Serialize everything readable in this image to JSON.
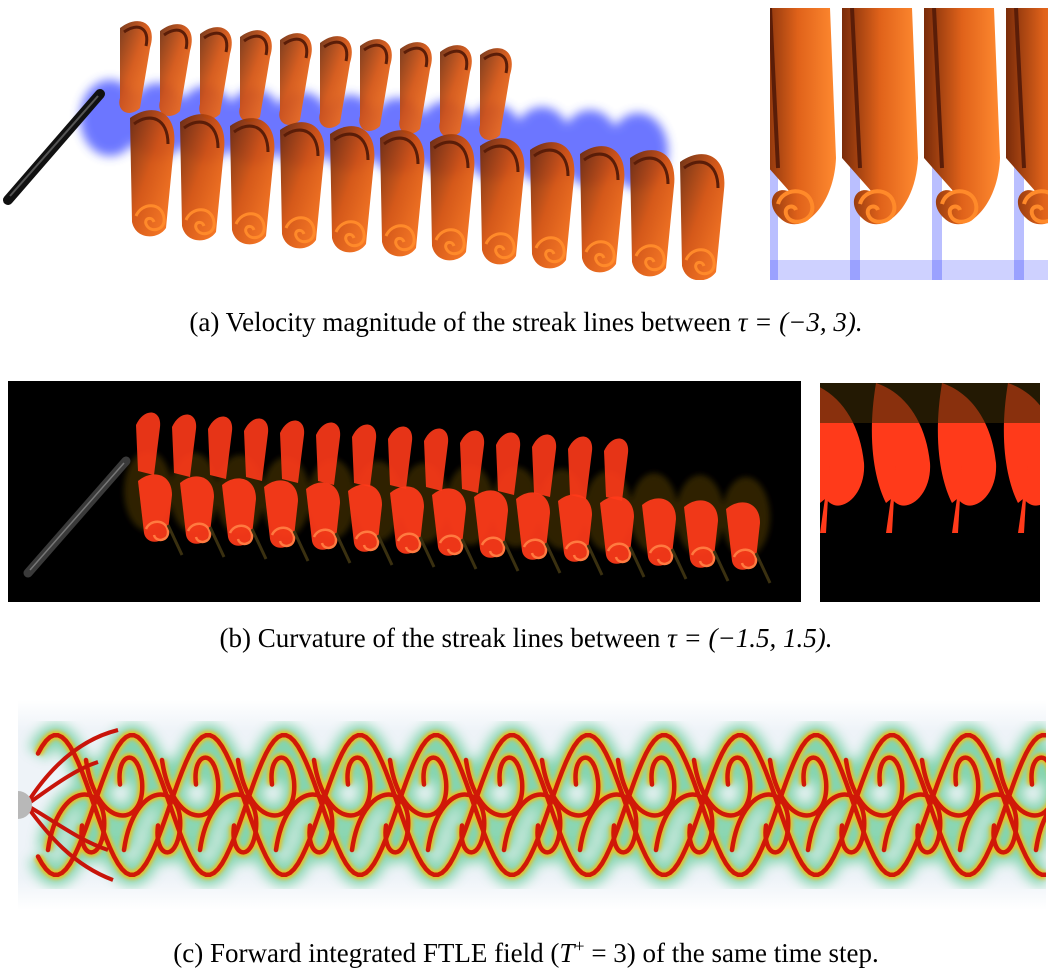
{
  "figure": {
    "panels": [
      {
        "id": "a",
        "caption_prefix": "(a) Velocity magnitude of the streak lines between ",
        "caption_math": "τ = (−3, 3).",
        "colors": {
          "sheet": "#e2560f",
          "highlight": "#ff8a2a",
          "dark": "#5a1d08",
          "vortex": "#3a48ff"
        }
      },
      {
        "id": "b",
        "caption_prefix": "(b) Curvature of the streak lines between ",
        "caption_math": "τ = (−1.5, 1.5).",
        "colors": {
          "background": "#000000",
          "sheet": "#ff3a1a",
          "dark": "#3a2a05"
        }
      },
      {
        "id": "c",
        "caption_prefix": "(c) Forward integrated FTLE field (",
        "caption_math": "T",
        "caption_sup": "+",
        "caption_math2": " = 3)",
        "caption_suffix": " of the same time step.",
        "colors": {
          "ridge": "#d01808",
          "halo": "#e8c020",
          "glow": "#5ac890",
          "background": "#eef3f8",
          "cylinder": "#b8b8b8"
        }
      }
    ]
  }
}
